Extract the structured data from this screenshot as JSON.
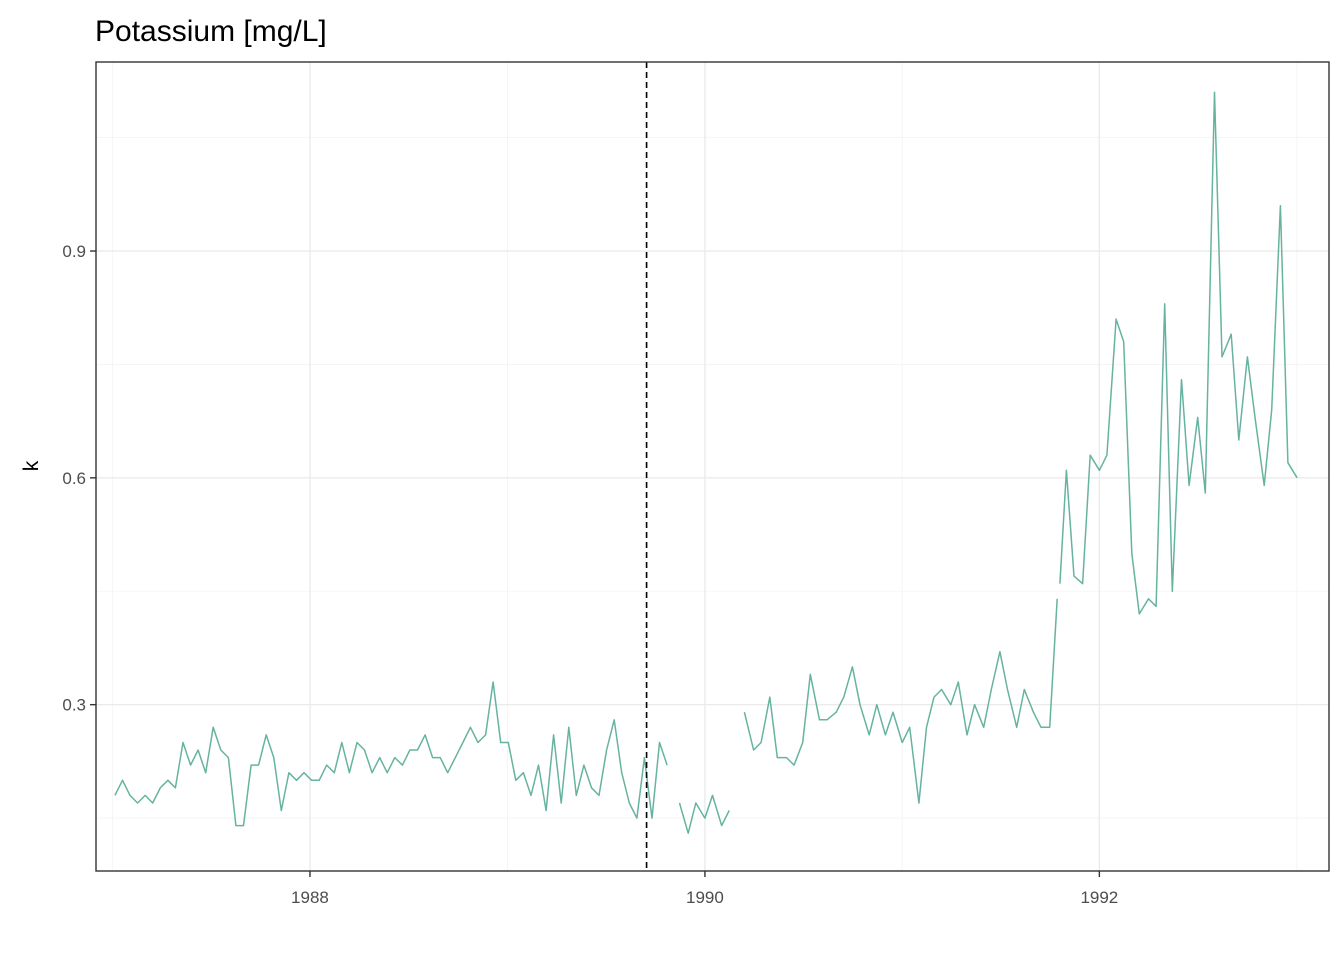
{
  "chart_data": {
    "type": "line",
    "title": "Potassium [mg/L]",
    "xlabel": "",
    "ylabel": "k",
    "x_ticks": [
      "1988",
      "1990",
      "1992"
    ],
    "y_ticks": [
      "0.3",
      "0.6",
      "0.9"
    ],
    "xlim": [
      "1986-12-01",
      "1993-03-01"
    ],
    "ylim": [
      0.08,
      1.15
    ],
    "grid": true,
    "vline": {
      "x": "1989-09-15",
      "style": "dashed"
    },
    "series_color": "#66b3a0",
    "segments": [
      [
        [
          "1987-01-05",
          0.18
        ],
        [
          "1987-01-19",
          0.2
        ],
        [
          "1987-02-02",
          0.18
        ],
        [
          "1987-02-16",
          0.17
        ],
        [
          "1987-03-02",
          0.18
        ],
        [
          "1987-03-16",
          0.17
        ],
        [
          "1987-03-30",
          0.19
        ],
        [
          "1987-04-13",
          0.2
        ],
        [
          "1987-04-27",
          0.19
        ],
        [
          "1987-05-11",
          0.25
        ],
        [
          "1987-05-25",
          0.22
        ],
        [
          "1987-06-08",
          0.24
        ],
        [
          "1987-06-22",
          0.21
        ],
        [
          "1987-07-06",
          0.27
        ],
        [
          "1987-07-20",
          0.24
        ],
        [
          "1987-08-03",
          0.23
        ],
        [
          "1987-08-17",
          0.14
        ],
        [
          "1987-08-31",
          0.14
        ],
        [
          "1987-09-14",
          0.22
        ],
        [
          "1987-09-28",
          0.22
        ],
        [
          "1987-10-12",
          0.26
        ],
        [
          "1987-10-26",
          0.23
        ],
        [
          "1987-11-09",
          0.16
        ],
        [
          "1987-11-23",
          0.21
        ],
        [
          "1987-12-07",
          0.2
        ],
        [
          "1987-12-21",
          0.21
        ],
        [
          "1988-01-04",
          0.2
        ],
        [
          "1988-01-18",
          0.2
        ],
        [
          "1988-02-01",
          0.22
        ],
        [
          "1988-02-15",
          0.21
        ],
        [
          "1988-02-29",
          0.25
        ],
        [
          "1988-03-14",
          0.21
        ],
        [
          "1988-03-28",
          0.25
        ],
        [
          "1988-04-11",
          0.24
        ],
        [
          "1988-04-25",
          0.21
        ],
        [
          "1988-05-09",
          0.23
        ],
        [
          "1988-05-23",
          0.21
        ],
        [
          "1988-06-06",
          0.23
        ],
        [
          "1988-06-20",
          0.22
        ],
        [
          "1988-07-04",
          0.24
        ],
        [
          "1988-07-18",
          0.24
        ],
        [
          "1988-08-01",
          0.26
        ],
        [
          "1988-08-15",
          0.23
        ],
        [
          "1988-08-29",
          0.23
        ],
        [
          "1988-09-12",
          0.21
        ],
        [
          "1988-09-26",
          0.23
        ],
        [
          "1988-10-10",
          0.25
        ],
        [
          "1988-10-24",
          0.27
        ],
        [
          "1988-11-07",
          0.25
        ],
        [
          "1988-11-21",
          0.26
        ],
        [
          "1988-12-05",
          0.33
        ],
        [
          "1988-12-19",
          0.25
        ],
        [
          "1989-01-02",
          0.25
        ],
        [
          "1989-01-16",
          0.2
        ],
        [
          "1989-01-30",
          0.21
        ],
        [
          "1989-02-13",
          0.18
        ],
        [
          "1989-02-27",
          0.22
        ],
        [
          "1989-03-13",
          0.16
        ],
        [
          "1989-03-27",
          0.26
        ],
        [
          "1989-04-10",
          0.17
        ],
        [
          "1989-04-24",
          0.27
        ],
        [
          "1989-05-08",
          0.18
        ],
        [
          "1989-05-22",
          0.22
        ],
        [
          "1989-06-05",
          0.19
        ],
        [
          "1989-06-19",
          0.18
        ],
        [
          "1989-07-03",
          0.24
        ],
        [
          "1989-07-17",
          0.28
        ],
        [
          "1989-07-31",
          0.21
        ],
        [
          "1989-08-14",
          0.17
        ],
        [
          "1989-08-28",
          0.15
        ],
        [
          "1989-09-11",
          0.23
        ],
        [
          "1989-09-25",
          0.15
        ],
        [
          "1989-10-09",
          0.25
        ],
        [
          "1989-10-23",
          0.22
        ]
      ],
      [
        [
          "1989-11-15",
          0.17
        ],
        [
          "1989-12-01",
          0.13
        ],
        [
          "1989-12-15",
          0.17
        ],
        [
          "1990-01-01",
          0.15
        ],
        [
          "1990-01-15",
          0.18
        ],
        [
          "1990-02-01",
          0.14
        ],
        [
          "1990-02-15",
          0.16
        ]
      ],
      [
        [
          "1990-03-15",
          0.29
        ],
        [
          "1990-04-01",
          0.24
        ],
        [
          "1990-04-15",
          0.25
        ],
        [
          "1990-05-01",
          0.31
        ],
        [
          "1990-05-15",
          0.23
        ],
        [
          "1990-06-01",
          0.23
        ],
        [
          "1990-06-15",
          0.22
        ],
        [
          "1990-07-01",
          0.25
        ],
        [
          "1990-07-15",
          0.34
        ],
        [
          "1990-08-01",
          0.28
        ],
        [
          "1990-08-15",
          0.28
        ],
        [
          "1990-09-01",
          0.29
        ],
        [
          "1990-09-15",
          0.31
        ],
        [
          "1990-10-01",
          0.35
        ],
        [
          "1990-10-15",
          0.3
        ],
        [
          "1990-11-01",
          0.26
        ],
        [
          "1990-11-15",
          0.3
        ],
        [
          "1990-12-01",
          0.26
        ],
        [
          "1990-12-15",
          0.29
        ],
        [
          "1991-01-01",
          0.25
        ],
        [
          "1991-01-15",
          0.27
        ],
        [
          "1991-02-01",
          0.17
        ],
        [
          "1991-02-15",
          0.27
        ],
        [
          "1991-03-01",
          0.31
        ],
        [
          "1991-03-15",
          0.32
        ],
        [
          "1991-04-01",
          0.3
        ],
        [
          "1991-04-15",
          0.33
        ],
        [
          "1991-05-01",
          0.26
        ],
        [
          "1991-05-15",
          0.3
        ],
        [
          "1991-06-01",
          0.27
        ],
        [
          "1991-06-15",
          0.32
        ],
        [
          "1991-07-01",
          0.37
        ],
        [
          "1991-07-15",
          0.32
        ],
        [
          "1991-08-01",
          0.27
        ],
        [
          "1991-08-15",
          0.32
        ],
        [
          "1991-09-01",
          0.29
        ],
        [
          "1991-09-15",
          0.27
        ],
        [
          "1991-10-01",
          0.27
        ],
        [
          "1991-10-15",
          0.44
        ]
      ],
      [
        [
          "1991-10-20",
          0.46
        ],
        [
          "1991-11-01",
          0.61
        ],
        [
          "1991-11-15",
          0.47
        ],
        [
          "1991-12-01",
          0.46
        ],
        [
          "1991-12-15",
          0.63
        ],
        [
          "1992-01-01",
          0.61
        ],
        [
          "1992-01-15",
          0.63
        ],
        [
          "1992-02-01",
          0.81
        ],
        [
          "1992-02-15",
          0.78
        ],
        [
          "1992-03-01",
          0.5
        ],
        [
          "1992-03-15",
          0.42
        ],
        [
          "1992-04-01",
          0.44
        ],
        [
          "1992-04-15",
          0.43
        ],
        [
          "1992-05-01",
          0.83
        ],
        [
          "1992-05-15",
          0.45
        ],
        [
          "1992-06-01",
          0.73
        ],
        [
          "1992-06-15",
          0.59
        ],
        [
          "1992-07-01",
          0.68
        ],
        [
          "1992-07-15",
          0.58
        ],
        [
          "1992-08-01",
          1.11
        ],
        [
          "1992-08-15",
          0.76
        ],
        [
          "1992-09-01",
          0.79
        ],
        [
          "1992-09-15",
          0.65
        ],
        [
          "1992-10-01",
          0.76
        ],
        [
          "1992-10-15",
          0.68
        ],
        [
          "1992-11-01",
          0.59
        ],
        [
          "1992-11-15",
          0.69
        ],
        [
          "1992-12-01",
          0.96
        ],
        [
          "1992-12-15",
          0.62
        ],
        [
          "1993-01-01",
          0.6
        ]
      ]
    ]
  }
}
